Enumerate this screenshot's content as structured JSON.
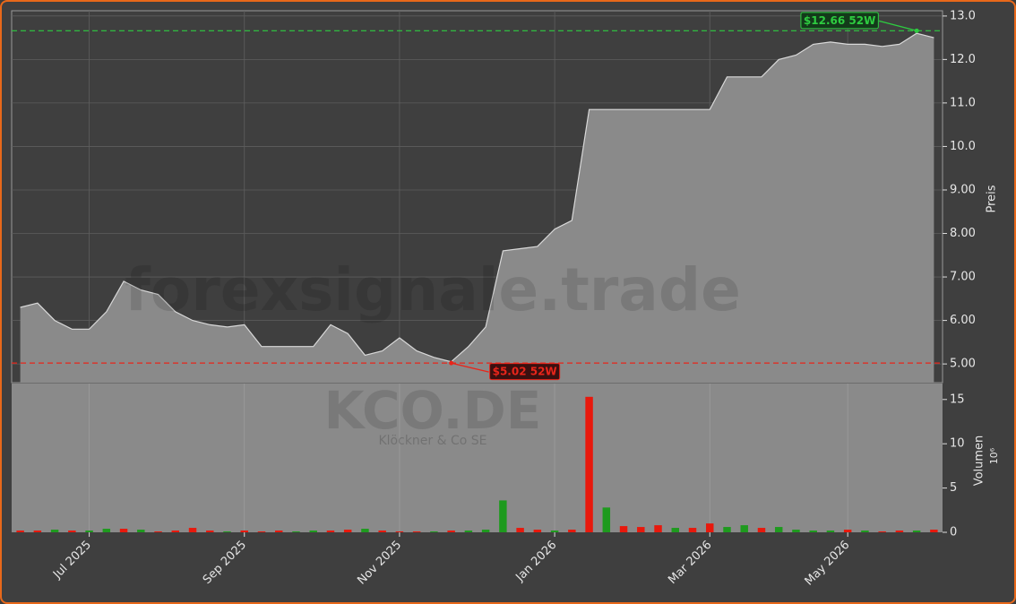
{
  "chart_data": {
    "type": "area",
    "watermark": "forexsignale.trade",
    "ticker": "KCO.DE",
    "company": "Klöckner & Co SE",
    "price_label": "Preis",
    "volume_label": "Volumen",
    "volume_unit": "10⁶",
    "categories": [
      null,
      null,
      null,
      null,
      "Jul 2025",
      null,
      null,
      null,
      null,
      null,
      null,
      null,
      null,
      "Sep 2025",
      null,
      null,
      null,
      null,
      null,
      null,
      null,
      null,
      "Nov 2025",
      null,
      null,
      null,
      null,
      null,
      null,
      null,
      null,
      "Jan 2026",
      null,
      null,
      null,
      null,
      null,
      null,
      null,
      null,
      "Mar 2026",
      null,
      null,
      null,
      null,
      null,
      null,
      null,
      "May 2026",
      null,
      null,
      null,
      null,
      null
    ],
    "price": {
      "color": "#d9d9d9",
      "fill": "#8a8a8a",
      "values": [
        6.3,
        6.4,
        6.0,
        5.8,
        5.8,
        6.2,
        6.9,
        6.7,
        6.6,
        6.2,
        6.0,
        5.9,
        5.85,
        5.9,
        5.4,
        5.4,
        5.4,
        5.4,
        5.9,
        5.7,
        5.2,
        5.3,
        5.6,
        5.3,
        5.15,
        5.05,
        5.4,
        5.85,
        7.6,
        7.65,
        7.7,
        8.1,
        8.3,
        10.85,
        10.85,
        10.85,
        10.85,
        10.85,
        10.85,
        10.85,
        10.85,
        11.6,
        11.6,
        11.6,
        12.0,
        12.1,
        12.35,
        12.4,
        12.35,
        12.35,
        12.3,
        12.35,
        12.6,
        12.5
      ]
    },
    "volume": {
      "values": [
        0.2,
        0.2,
        0.3,
        0.2,
        0.2,
        0.4,
        0.4,
        0.3,
        0.1,
        0.2,
        0.5,
        0.2,
        0.1,
        0.2,
        0.1,
        0.2,
        0.1,
        0.2,
        0.2,
        0.3,
        0.4,
        0.2,
        0.1,
        0.1,
        0.1,
        0.2,
        0.2,
        0.3,
        3.6,
        0.5,
        0.3,
        0.2,
        0.3,
        15.3,
        2.8,
        0.7,
        0.6,
        0.8,
        0.5,
        0.5,
        1.0,
        0.6,
        0.8,
        0.5,
        0.6,
        0.3,
        0.2,
        0.2,
        0.3,
        0.2,
        0.1,
        0.2,
        0.2,
        0.3
      ],
      "colors": [
        "#e8180c",
        "#e8180c",
        "#1e9a1e",
        "#e8180c",
        "#1e9a1e",
        "#1e9a1e",
        "#e8180c",
        "#1e9a1e",
        "#e8180c",
        "#e8180c",
        "#e8180c",
        "#e8180c",
        "#1e9a1e",
        "#e8180c",
        "#e8180c",
        "#e8180c",
        "#1e9a1e",
        "#1e9a1e",
        "#e8180c",
        "#e8180c",
        "#1e9a1e",
        "#e8180c",
        "#e8180c",
        "#e8180c",
        "#1e9a1e",
        "#e8180c",
        "#1e9a1e",
        "#1e9a1e",
        "#1e9a1e",
        "#e8180c",
        "#e8180c",
        "#1e9a1e",
        "#e8180c",
        "#e8180c",
        "#1e9a1e",
        "#e8180c",
        "#e8180c",
        "#e8180c",
        "#1e9a1e",
        "#e8180c",
        "#e8180c",
        "#1e9a1e",
        "#1e9a1e",
        "#e8180c",
        "#1e9a1e",
        "#1e9a1e",
        "#1e9a1e",
        "#1e9a1e",
        "#e8180c",
        "#1e9a1e",
        "#e8180c",
        "#e8180c",
        "#1e9a1e",
        "#e8180c"
      ]
    },
    "ylim": [
      4.57,
      13.12
    ],
    "yticks": [
      {
        "value": 5,
        "label": "5.00"
      },
      {
        "value": 6,
        "label": "6.00"
      },
      {
        "value": 7,
        "label": "7.00"
      },
      {
        "value": 8,
        "label": "8.00"
      },
      {
        "value": 9,
        "label": "9.00"
      },
      {
        "value": 10,
        "label": "10.0"
      },
      {
        "value": 11,
        "label": "11.0"
      },
      {
        "value": 12,
        "label": "12.0"
      },
      {
        "value": 13,
        "label": "13.0"
      }
    ],
    "y2lim": [
      0,
      16.8
    ],
    "y2ticks": [
      0,
      5,
      10,
      15
    ],
    "high": {
      "value": 12.66,
      "label": "$12.66 52W",
      "color": "#2ecc40"
    },
    "low": {
      "value": 5.02,
      "label": "$5.02 52W",
      "color": "#e8251a"
    },
    "grid": true
  }
}
